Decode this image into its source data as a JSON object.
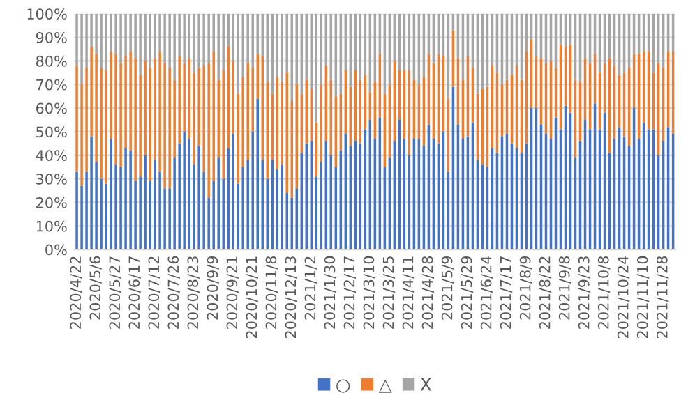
{
  "chart_data": {
    "type": "bar",
    "stacked": true,
    "categories": [
      "2020/4/22",
      null,
      null,
      null,
      "2020/5/6",
      null,
      null,
      null,
      "2020/5/27",
      null,
      null,
      null,
      "2020/6/17",
      null,
      null,
      null,
      "2020/7/12",
      null,
      null,
      null,
      "2020/7/26",
      null,
      null,
      null,
      "2020/8/23",
      null,
      null,
      null,
      "2020/9/9",
      null,
      null,
      null,
      "2020/9/21",
      null,
      null,
      null,
      "2020/10/21",
      null,
      null,
      null,
      "2020/11/8",
      null,
      null,
      null,
      "2020/12/13",
      null,
      null,
      null,
      "2021/1/2",
      null,
      null,
      null,
      "2021/1/30",
      null,
      null,
      null,
      "2021/2/17",
      null,
      null,
      null,
      "2021/3/10",
      null,
      null,
      null,
      "2021/3/25",
      null,
      null,
      null,
      "2021/4/11",
      null,
      null,
      null,
      "2021/4/28",
      null,
      null,
      null,
      "2021/5/9",
      null,
      null,
      null,
      "2021/5/29",
      null,
      null,
      null,
      "2021/6/24",
      null,
      null,
      null,
      "2021/7/17",
      null,
      null,
      null,
      "2021/8/9",
      null,
      null,
      null,
      "2021/8/22",
      null,
      null,
      null,
      "2021/9/8",
      null,
      null,
      null,
      "2021/9/23",
      null,
      null,
      null,
      "2021/10/8",
      null,
      null,
      null,
      "2021/10/24",
      null,
      null,
      null,
      "2021/11/10",
      null,
      null,
      null,
      "2021/11/28",
      null,
      null
    ],
    "series": [
      {
        "name": "○",
        "color": "#4472c4",
        "values": [
          33,
          27,
          33,
          48,
          37,
          30,
          28,
          47,
          36,
          35,
          43,
          42,
          29,
          31,
          40,
          29,
          38,
          33,
          26,
          26,
          39,
          45,
          50,
          47,
          36,
          44,
          33,
          22,
          29,
          39,
          30,
          43,
          49,
          28,
          35,
          38,
          50,
          64,
          38,
          30,
          38,
          34,
          36,
          24,
          22,
          26,
          41,
          45,
          46,
          31,
          37,
          46,
          40,
          35,
          42,
          49,
          44,
          46,
          45,
          51,
          55,
          47,
          56,
          35,
          39,
          46,
          55,
          47,
          40,
          47,
          47,
          44,
          53,
          47,
          45,
          50,
          33,
          69,
          53,
          47,
          48,
          54,
          38,
          36,
          35,
          43,
          41,
          48,
          49,
          45,
          43,
          41,
          45,
          60,
          60,
          53,
          49,
          47,
          56,
          51,
          61,
          58,
          39,
          46,
          55,
          51,
          62,
          51,
          58,
          41,
          47,
          52,
          48,
          44,
          60,
          47,
          54,
          51,
          51,
          40,
          46,
          52,
          49
        ]
      },
      {
        "name": "△",
        "color": "#ed7d31",
        "values": [
          45,
          43,
          44,
          38,
          46,
          47,
          48,
          37,
          47,
          44,
          39,
          42,
          52,
          43,
          40,
          48,
          43,
          51,
          53,
          51,
          33,
          37,
          29,
          34,
          39,
          33,
          45,
          57,
          55,
          33,
          46,
          43,
          31,
          38,
          38,
          41,
          27,
          19,
          44,
          41,
          28,
          39,
          35,
          51,
          41,
          44,
          25,
          27,
          22,
          23,
          33,
          32,
          32,
          30,
          24,
          27,
          25,
          30,
          27,
          23,
          12,
          24,
          27,
          31,
          31,
          34,
          21,
          29,
          36,
          25,
          23,
          29,
          30,
          32,
          38,
          32,
          31,
          24,
          28,
          25,
          34,
          23,
          28,
          32,
          34,
          35,
          34,
          22,
          23,
          29,
          35,
          31,
          39,
          29,
          22,
          28,
          30,
          33,
          21,
          36,
          25,
          29,
          33,
          25,
          26,
          28,
          21,
          24,
          21,
          40,
          31,
          22,
          27,
          33,
          23,
          36,
          30,
          33,
          24,
          39,
          31,
          32,
          35
        ]
      },
      {
        "name": "X",
        "color": "#a5a5a5",
        "values": [
          22,
          30,
          23,
          14,
          17,
          23,
          24,
          16,
          17,
          21,
          18,
          16,
          19,
          26,
          20,
          23,
          19,
          16,
          21,
          23,
          28,
          18,
          21,
          19,
          25,
          23,
          22,
          21,
          16,
          28,
          24,
          14,
          20,
          34,
          27,
          21,
          23,
          17,
          18,
          29,
          34,
          27,
          29,
          25,
          37,
          30,
          34,
          28,
          32,
          46,
          30,
          22,
          28,
          35,
          34,
          24,
          31,
          24,
          28,
          26,
          33,
          29,
          17,
          34,
          30,
          20,
          24,
          24,
          24,
          28,
          30,
          27,
          17,
          21,
          17,
          18,
          36,
          7,
          19,
          28,
          18,
          23,
          34,
          32,
          31,
          22,
          25,
          30,
          28,
          26,
          22,
          28,
          16,
          11,
          18,
          19,
          21,
          20,
          23,
          13,
          14,
          13,
          28,
          29,
          19,
          21,
          17,
          25,
          21,
          19,
          22,
          26,
          25,
          23,
          17,
          17,
          16,
          16,
          25,
          21,
          23,
          16,
          16
        ]
      }
    ],
    "ylim": [
      0,
      100
    ],
    "yticks": [
      {
        "value": 0,
        "label": "0%"
      },
      {
        "value": 10,
        "label": "10%"
      },
      {
        "value": 20,
        "label": "20%"
      },
      {
        "value": 30,
        "label": "30%"
      },
      {
        "value": 40,
        "label": "40%"
      },
      {
        "value": 50,
        "label": "50%"
      },
      {
        "value": 60,
        "label": "60%"
      },
      {
        "value": 70,
        "label": "70%"
      },
      {
        "value": 80,
        "label": "80%"
      },
      {
        "value": 90,
        "label": "90%"
      },
      {
        "value": 100,
        "label": "100%"
      }
    ],
    "grid": "y",
    "legend": "bottom"
  }
}
